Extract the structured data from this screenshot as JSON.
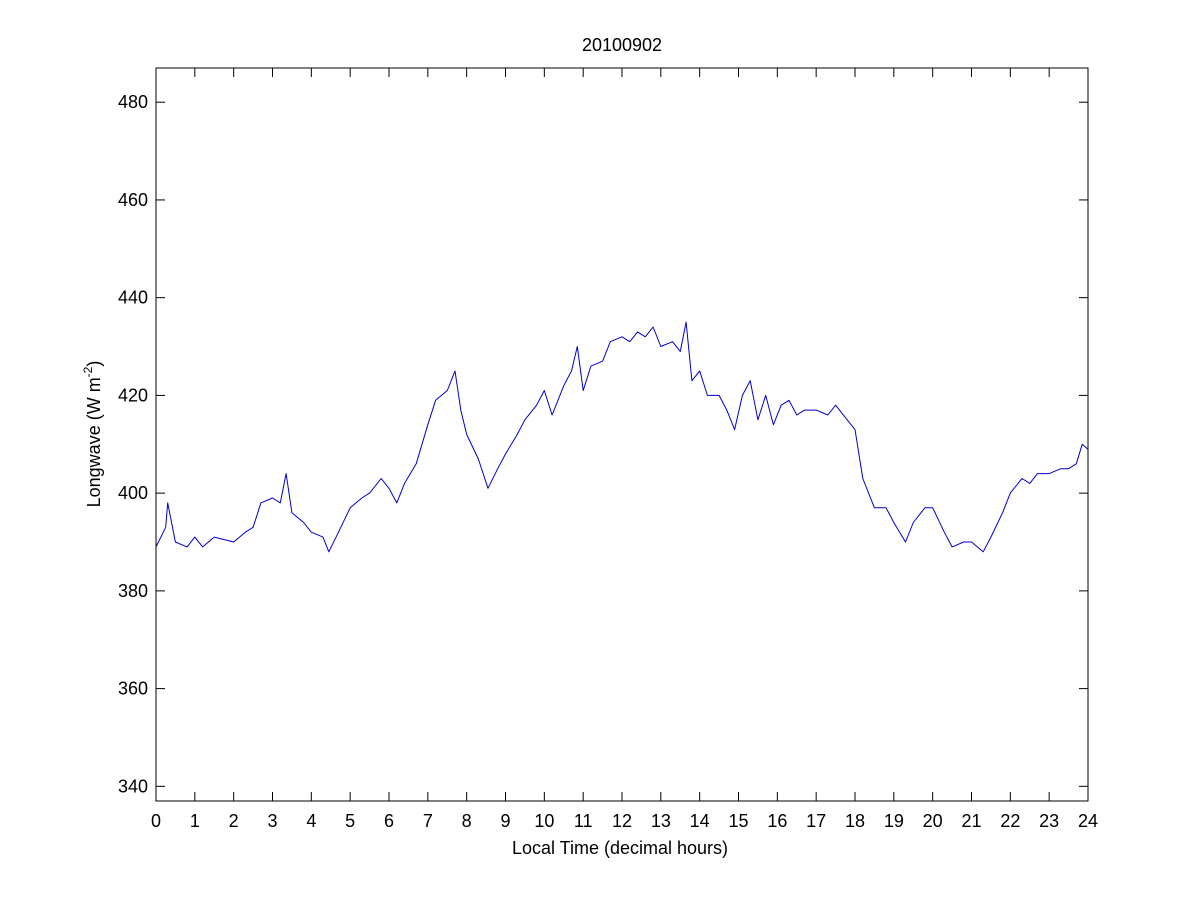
{
  "chart_data": {
    "type": "line",
    "title": "20100902",
    "xlabel": "Local Time (decimal hours)",
    "ylabel_main": "Longwave (W m",
    "ylabel_sup": "-2",
    "ylabel_close": ")",
    "xlim": [
      0,
      24
    ],
    "ylim": [
      337,
      487
    ],
    "xticks": [
      0,
      1,
      2,
      3,
      4,
      5,
      6,
      7,
      8,
      9,
      10,
      11,
      12,
      13,
      14,
      15,
      16,
      17,
      18,
      19,
      20,
      21,
      22,
      23,
      24
    ],
    "yticks": [
      340,
      360,
      380,
      400,
      420,
      440,
      460,
      480
    ],
    "grid": false,
    "line_color": "#0000cc",
    "series": [
      {
        "x": [
          0,
          0.25,
          0.3,
          0.5,
          0.8,
          1.0,
          1.2,
          1.5,
          2.0,
          2.3,
          2.5,
          2.7,
          3.0,
          3.2,
          3.35,
          3.5,
          3.8,
          4.0,
          4.3,
          4.45,
          4.7,
          5.0,
          5.3,
          5.5,
          5.8,
          6.0,
          6.2,
          6.4,
          6.7,
          7.0,
          7.2,
          7.5,
          7.7,
          7.85,
          8.0,
          8.3,
          8.55,
          8.8,
          9.0,
          9.3,
          9.5,
          9.8,
          10.0,
          10.2,
          10.5,
          10.7,
          10.85,
          11.0,
          11.2,
          11.5,
          11.7,
          12.0,
          12.2,
          12.4,
          12.6,
          12.8,
          13.0,
          13.3,
          13.5,
          13.65,
          13.8,
          14.0,
          14.2,
          14.5,
          14.7,
          14.9,
          15.1,
          15.3,
          15.5,
          15.7,
          15.9,
          16.1,
          16.3,
          16.5,
          16.7,
          17.0,
          17.3,
          17.5,
          17.8,
          18.0,
          18.2,
          18.5,
          18.8,
          19.0,
          19.3,
          19.5,
          19.8,
          20.0,
          20.3,
          20.5,
          20.8,
          21.0,
          21.3,
          21.5,
          21.8,
          22.0,
          22.3,
          22.5,
          22.7,
          23.0,
          23.3,
          23.5,
          23.7,
          23.85,
          24.0
        ],
        "y": [
          389,
          393,
          398,
          390,
          389,
          391,
          389,
          391,
          390,
          392,
          393,
          398,
          399,
          398,
          404,
          396,
          394,
          392,
          391,
          388,
          392,
          397,
          399,
          400,
          403,
          401,
          398,
          402,
          406,
          414,
          419,
          421,
          425,
          417,
          412,
          407,
          401,
          405,
          408,
          412,
          415,
          418,
          421,
          416,
          422,
          425,
          430,
          421,
          426,
          427,
          431,
          432,
          431,
          433,
          432,
          434,
          430,
          431,
          429,
          435,
          423,
          425,
          420,
          420,
          417,
          413,
          420,
          423,
          415,
          420,
          414,
          418,
          419,
          416,
          417,
          417,
          416,
          418,
          415,
          413,
          403,
          397,
          397,
          394,
          390,
          394,
          397,
          397,
          392,
          389,
          390,
          390,
          388,
          391,
          396,
          400,
          403,
          402,
          404,
          404,
          405,
          405,
          406,
          410,
          409
        ]
      }
    ]
  }
}
